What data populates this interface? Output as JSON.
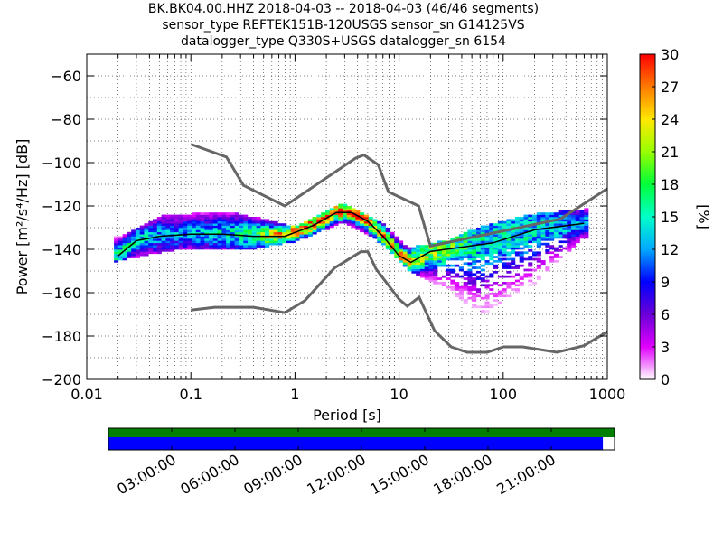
{
  "header": {
    "title_line1": "BK.BK04.00.HHZ   2018-04-03 -- 2018-04-03  (46/46 segments)",
    "title_line2": "sensor_type REFTEK151B-120USGS sensor_sn G14125VS",
    "title_line3": "datalogger_type Q330S+USGS datalogger_sn 6154"
  },
  "chart_data": [
    {
      "type": "heatmap",
      "title": "BK.BK04.00.HHZ   2018-04-03 -- 2018-04-03  (46/46 segments)",
      "xlabel": "Period [s]",
      "ylabel": "Power [m²/s⁴/Hz] [dB]",
      "xscale": "log",
      "xlim": [
        0.01,
        1000
      ],
      "ylim": [
        -200,
        -50
      ],
      "x_ticks": [
        "0.01",
        "0.1",
        "1",
        "10",
        "100",
        "1000"
      ],
      "y_ticks": [
        "−60",
        "−80",
        "−100",
        "−120",
        "−140",
        "−160",
        "−180",
        "−200"
      ],
      "grid": true,
      "colorbar": {
        "label": "[%]",
        "range": [
          0,
          30
        ],
        "ticks": [
          "0",
          "3",
          "6",
          "9",
          "12",
          "15",
          "18",
          "21",
          "24",
          "27",
          "30"
        ]
      },
      "series": [
        {
          "name": "",
          "role": "high-noise-model",
          "x": [
            0.1,
            0.22,
            0.32,
            0.8,
            3.8,
            4.6,
            6.3,
            7.9,
            15.4,
            20,
            354.8,
            1000
          ],
          "y": [
            -91.5,
            -97.4,
            -110.5,
            -120,
            -98,
            -96.5,
            -101,
            -113.5,
            -120,
            -138.5,
            -126,
            -112
          ]
        },
        {
          "name": "",
          "role": "low-noise-model",
          "x": [
            0.1,
            0.17,
            0.4,
            0.8,
            1.24,
            2.4,
            4.3,
            5,
            6,
            10,
            12,
            15.6,
            21.9,
            31.6,
            45,
            70,
            101,
            154,
            328,
            600,
            1000
          ],
          "y": [
            -168,
            -166.7,
            -166.7,
            -169.2,
            -163.7,
            -148.6,
            -141.1,
            -141.1,
            -149,
            -163,
            -166.2,
            -162.1,
            -177.5,
            -185,
            -187.5,
            -187.5,
            -185,
            -185,
            -187.5,
            -184.4,
            -178
          ]
        },
        {
          "name": "",
          "role": "mode",
          "x": [
            0.02,
            0.03,
            0.05,
            0.1,
            0.2,
            0.4,
            0.8,
            1.5,
            2.5,
            3.5,
            5,
            7,
            10,
            13,
            20,
            40,
            80,
            200,
            600
          ],
          "y": [
            -143,
            -136,
            -134,
            -133,
            -133,
            -134,
            -134,
            -129,
            -123,
            -123,
            -127,
            -134,
            -143,
            -146,
            -141,
            -139,
            -137,
            -131,
            -128
          ]
        }
      ],
      "pdf_density": [
        {
          "period": 0.02,
          "dB_min": -146,
          "dB_max": -135,
          "peak_percent": 16
        },
        {
          "period": 0.05,
          "dB_min": -142,
          "dB_max": -125,
          "peak_percent": 12
        },
        {
          "period": 0.1,
          "dB_min": -140,
          "dB_max": -124,
          "peak_percent": 12
        },
        {
          "period": 0.3,
          "dB_min": -141,
          "dB_max": -124,
          "peak_percent": 15
        },
        {
          "period": 1,
          "dB_min": -137,
          "dB_max": -130,
          "peak_percent": 27
        },
        {
          "period": 3,
          "dB_min": -128,
          "dB_max": -119,
          "peak_percent": 28
        },
        {
          "period": 7,
          "dB_min": -138,
          "dB_max": -128,
          "peak_percent": 26
        },
        {
          "period": 12,
          "dB_min": -150,
          "dB_max": -140,
          "peak_percent": 24
        },
        {
          "period": 30,
          "dB_min": -160,
          "dB_max": -136,
          "peak_percent": 18
        },
        {
          "period": 60,
          "dB_min": -171,
          "dB_max": -130,
          "peak_percent": 14
        },
        {
          "period": 200,
          "dB_min": -156,
          "dB_max": -124,
          "peak_percent": 14
        },
        {
          "period": 600,
          "dB_min": -135,
          "dB_max": -122,
          "peak_percent": 12
        }
      ]
    },
    {
      "type": "bar",
      "title": "",
      "xlabel": "",
      "ylabel": "",
      "x_ticks": [
        "03:00:00",
        "06:00:00",
        "09:00:00",
        "12:00:00",
        "15:00:00",
        "18:00:00",
        "21:00:00"
      ],
      "series": [
        {
          "name": "",
          "color": "#007f00",
          "coverage_fraction": 1.0
        },
        {
          "name": "",
          "color": "#0000ff",
          "coverage_fraction": 0.977
        }
      ]
    }
  ]
}
